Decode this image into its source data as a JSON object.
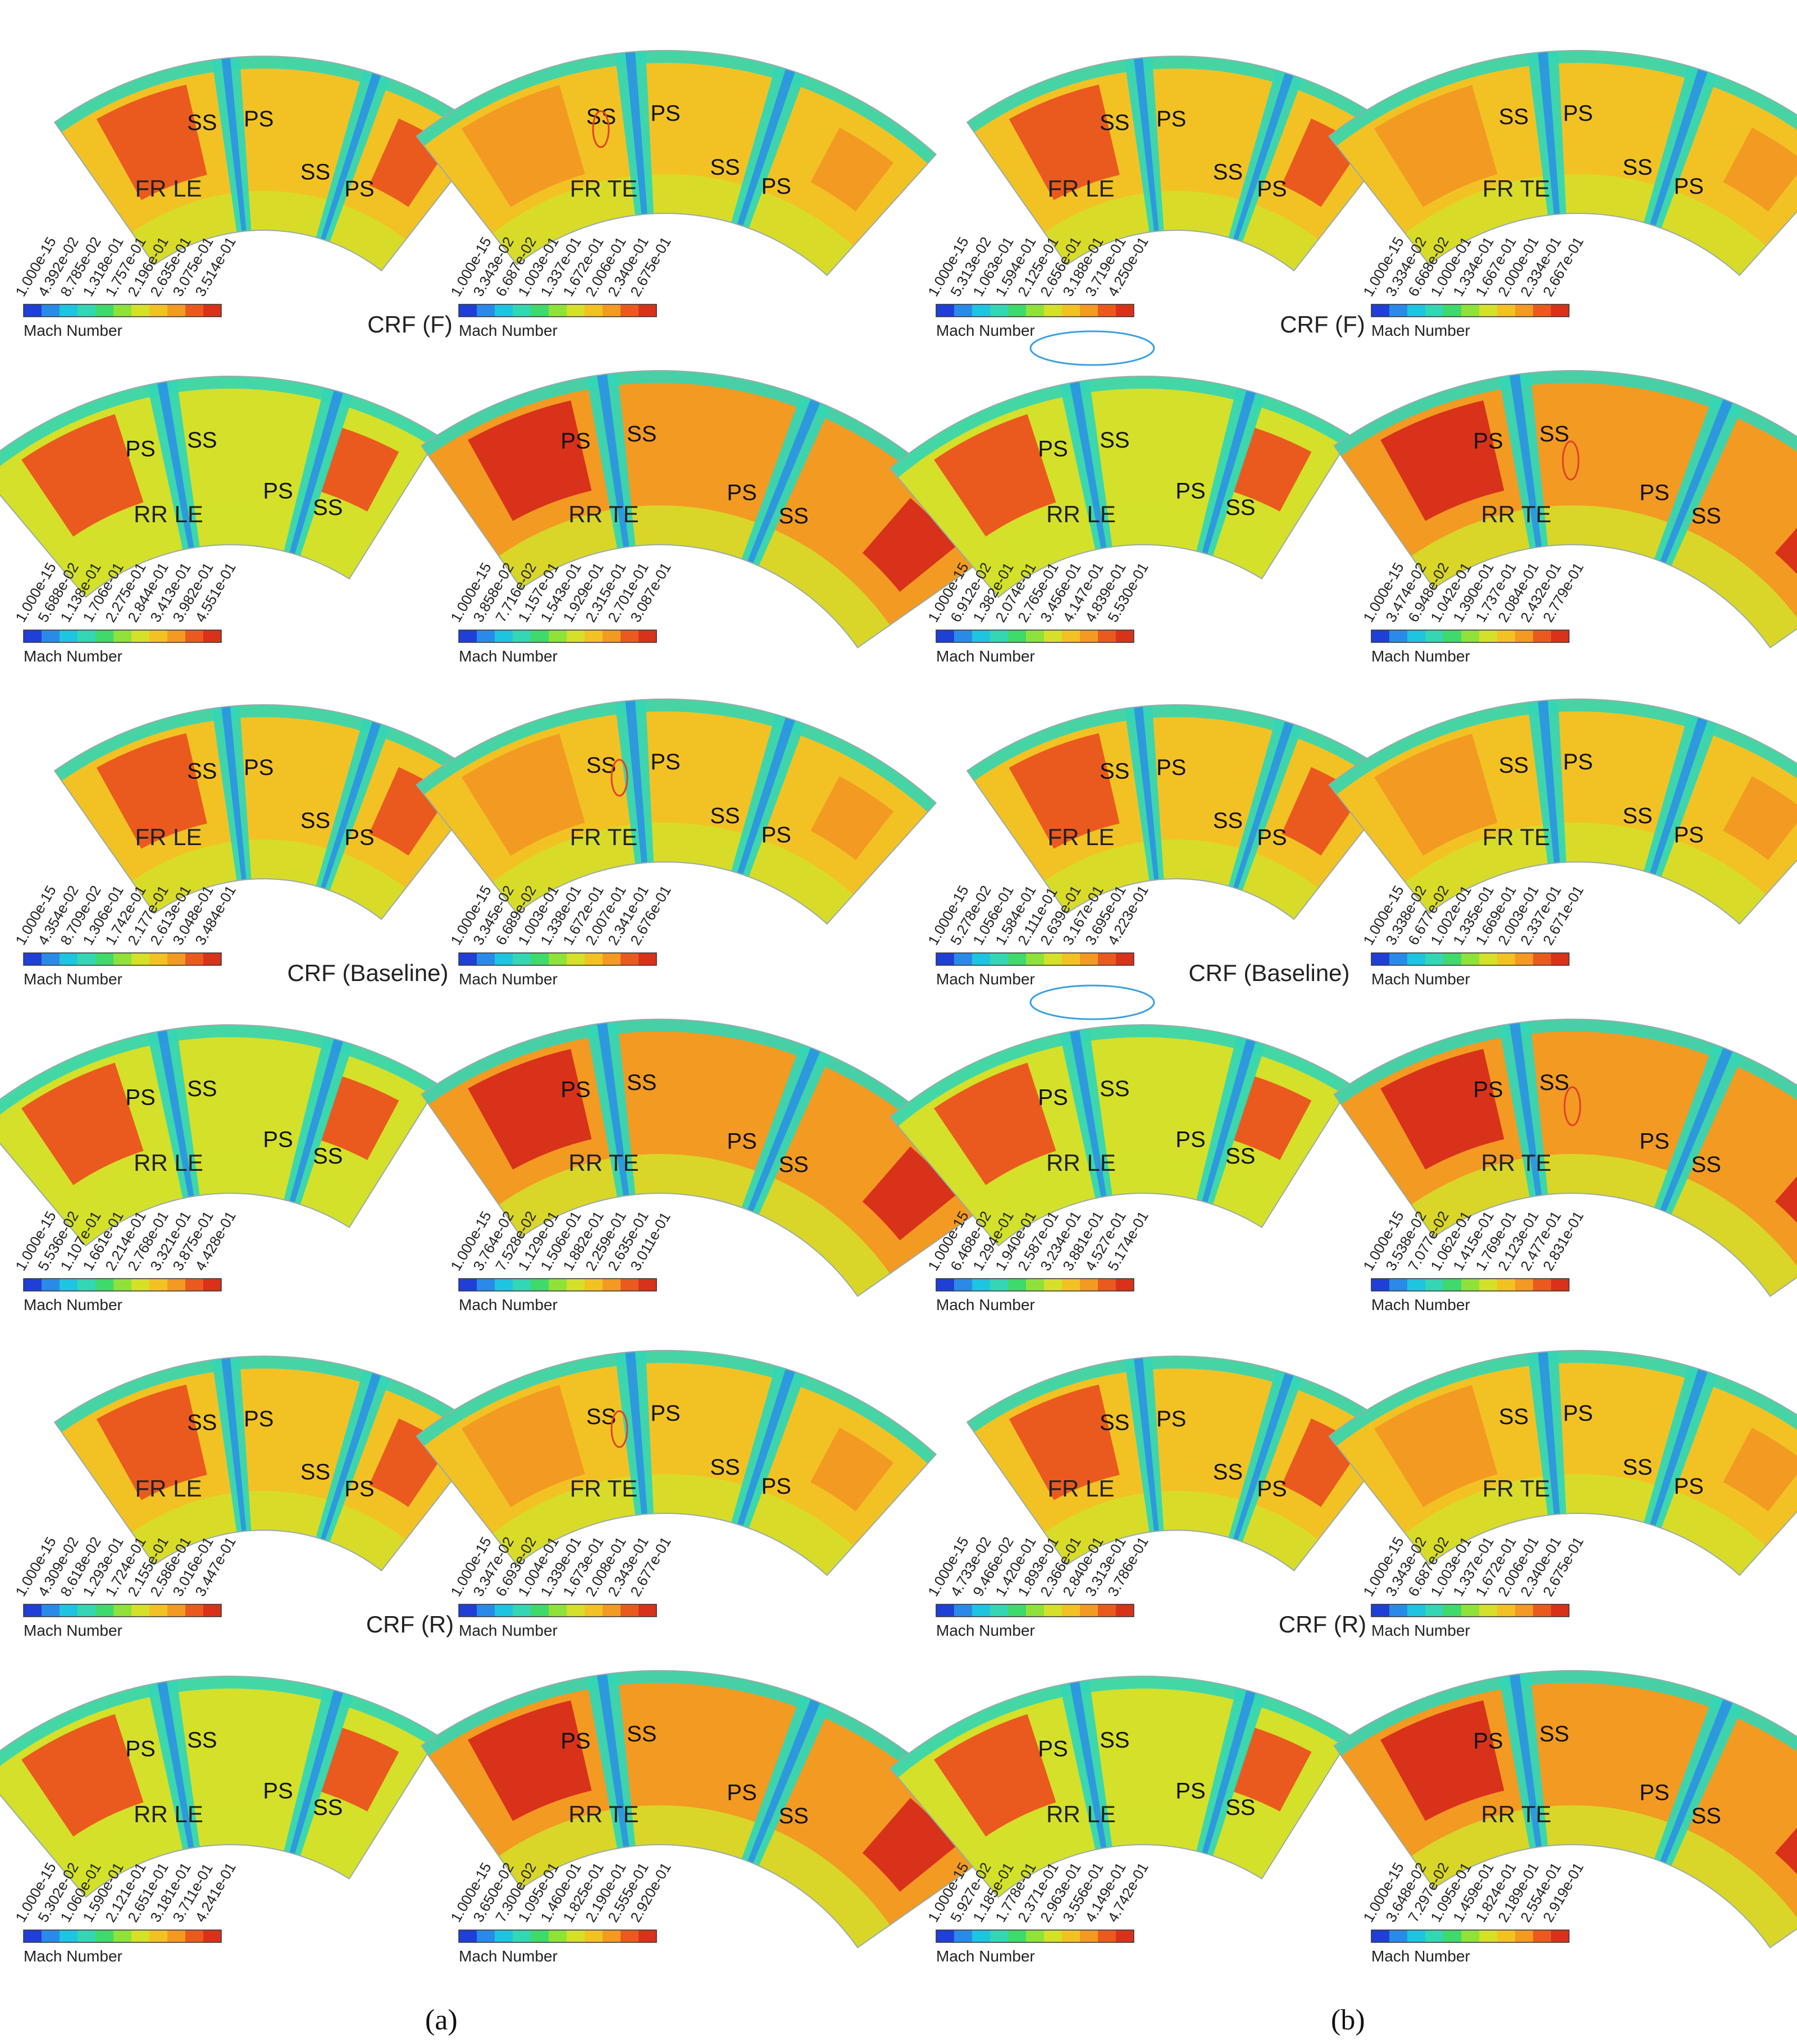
{
  "legend_title": "Mach Number",
  "colors": [
    "#1f3fd6",
    "#2a8ae8",
    "#1ec4e0",
    "#34d6b4",
    "#3fd96c",
    "#8ee23a",
    "#d4e02a",
    "#f2c224",
    "#f39a22",
    "#ea5a1e",
    "#d8321a"
  ],
  "sub_captions": [
    "(a)",
    "(b)"
  ],
  "group_labels": [
    "CRF (F)",
    "CRF (Baseline)",
    "CRF (R)"
  ],
  "rows": [
    {
      "a": [
        {
          "label": "FR LE",
          "regions": [
            "SS",
            "PS",
            "SS",
            "PS"
          ],
          "ticks": [
            "1.000e-15",
            "4.392e-02",
            "8.785e-02",
            "1.318e-01",
            "1.757e-01",
            "2.196e-01",
            "2.635e-01",
            "3.075e-01",
            "3.514e-01"
          ]
        },
        {
          "label": "FR TE",
          "regions": [
            "SS",
            "PS",
            "SS",
            "PS"
          ],
          "ticks": [
            "1.000e-15",
            "3.343e-02",
            "6.687e-02",
            "1.003e-01",
            "1.337e-01",
            "1.672e-01",
            "2.006e-01",
            "2.340e-01",
            "2.675e-01"
          ]
        }
      ],
      "b": [
        {
          "label": "FR LE",
          "regions": [
            "SS",
            "PS",
            "SS",
            "PS"
          ],
          "ticks": [
            "1.000e-15",
            "5.313e-02",
            "1.063e-01",
            "1.594e-01",
            "2.125e-01",
            "2.656e-01",
            "3.188e-01",
            "3.719e-01",
            "4.250e-01"
          ]
        },
        {
          "label": "FR TE",
          "regions": [
            "SS",
            "PS",
            "SS",
            "PS"
          ],
          "ticks": [
            "1.000e-15",
            "3.334e-02",
            "6.668e-02",
            "1.000e-01",
            "1.334e-01",
            "1.667e-01",
            "2.000e-01",
            "2.334e-01",
            "2.667e-01"
          ]
        }
      ]
    },
    {
      "a": [
        {
          "label": "RR LE",
          "regions": [
            "PS",
            "SS",
            "PS",
            "SS"
          ],
          "ticks": [
            "1.000e-15",
            "5.688e-02",
            "1.138e-01",
            "1.706e-01",
            "2.275e-01",
            "2.844e-01",
            "3.413e-01",
            "3.982e-01",
            "4.551e-01"
          ]
        },
        {
          "label": "RR TE",
          "regions": [
            "PS",
            "SS",
            "PS",
            "SS"
          ],
          "ticks": [
            "1.000e-15",
            "3.858e-02",
            "7.716e-02",
            "1.157e-01",
            "1.543e-01",
            "1.929e-01",
            "2.315e-01",
            "2.701e-01",
            "3.087e-01"
          ]
        }
      ],
      "b": [
        {
          "label": "RR LE",
          "regions": [
            "PS",
            "SS",
            "PS",
            "SS"
          ],
          "ticks": [
            "1.000e-15",
            "6.912e-02",
            "1.382e-01",
            "2.074e-01",
            "2.765e-01",
            "3.456e-01",
            "4.147e-01",
            "4.839e-01",
            "5.530e-01"
          ]
        },
        {
          "label": "RR TE",
          "regions": [
            "PS",
            "SS",
            "PS",
            "SS"
          ],
          "ticks": [
            "1.000e-15",
            "3.474e-02",
            "6.948e-02",
            "1.042e-01",
            "1.390e-01",
            "1.737e-01",
            "2.084e-01",
            "2.432e-01",
            "2.779e-01"
          ]
        }
      ]
    },
    {
      "a": [
        {
          "label": "FR LE",
          "regions": [
            "SS",
            "PS",
            "SS",
            "PS"
          ],
          "ticks": [
            "1.000e-15",
            "4.354e-02",
            "8.709e-02",
            "1.306e-01",
            "1.742e-01",
            "2.177e-01",
            "2.613e-01",
            "3.048e-01",
            "3.484e-01"
          ]
        },
        {
          "label": "FR TE",
          "regions": [
            "SS",
            "PS",
            "SS",
            "PS"
          ],
          "ticks": [
            "1.000e-15",
            "3.345e-02",
            "6.689e-02",
            "1.003e-01",
            "1.338e-01",
            "1.672e-01",
            "2.007e-01",
            "2.341e-01",
            "2.676e-01"
          ]
        }
      ],
      "b": [
        {
          "label": "FR LE",
          "regions": [
            "SS",
            "PS",
            "SS",
            "PS"
          ],
          "ticks": [
            "1.000e-15",
            "5.278e-02",
            "1.056e-01",
            "1.584e-01",
            "2.111e-01",
            "2.639e-01",
            "3.167e-01",
            "3.695e-01",
            "4.223e-01"
          ]
        },
        {
          "label": "FR TE",
          "regions": [
            "SS",
            "PS",
            "SS",
            "PS"
          ],
          "ticks": [
            "1.000e-15",
            "3.338e-02",
            "6.677e-02",
            "1.002e-01",
            "1.335e-01",
            "1.669e-01",
            "2.003e-01",
            "2.337e-01",
            "2.671e-01"
          ]
        }
      ]
    },
    {
      "a": [
        {
          "label": "RR LE",
          "regions": [
            "PS",
            "SS",
            "PS",
            "SS"
          ],
          "ticks": [
            "1.000e-15",
            "5.536e-02",
            "1.107e-01",
            "1.661e-01",
            "2.214e-01",
            "2.768e-01",
            "3.321e-01",
            "3.875e-01",
            "4.428e-01"
          ]
        },
        {
          "label": "RR TE",
          "regions": [
            "PS",
            "SS",
            "PS",
            "SS"
          ],
          "ticks": [
            "1.000e-15",
            "3.764e-02",
            "7.528e-02",
            "1.129e-01",
            "1.506e-01",
            "1.882e-01",
            "2.259e-01",
            "2.635e-01",
            "3.011e-01"
          ]
        }
      ],
      "b": [
        {
          "label": "RR LE",
          "regions": [
            "PS",
            "SS",
            "PS",
            "SS"
          ],
          "ticks": [
            "1.000e-15",
            "6.468e-02",
            "1.294e-01",
            "1.940e-01",
            "2.587e-01",
            "3.234e-01",
            "3.881e-01",
            "4.527e-01",
            "5.174e-01"
          ]
        },
        {
          "label": "RR TE",
          "regions": [
            "PS",
            "SS",
            "PS",
            "SS"
          ],
          "ticks": [
            "1.000e-15",
            "3.538e-02",
            "7.077e-02",
            "1.062e-01",
            "1.415e-01",
            "1.769e-01",
            "2.123e-01",
            "2.477e-01",
            "2.831e-01"
          ]
        }
      ]
    },
    {
      "a": [
        {
          "label": "FR LE",
          "regions": [
            "SS",
            "PS",
            "SS",
            "PS"
          ],
          "ticks": [
            "1.000e-15",
            "4.309e-02",
            "8.618e-02",
            "1.293e-01",
            "1.724e-01",
            "2.155e-01",
            "2.586e-01",
            "3.016e-01",
            "3.447e-01"
          ]
        },
        {
          "label": "FR TE",
          "regions": [
            "SS",
            "PS",
            "SS",
            "PS"
          ],
          "ticks": [
            "1.000e-15",
            "3.347e-02",
            "6.693e-02",
            "1.004e-01",
            "1.339e-01",
            "1.673e-01",
            "2.008e-01",
            "2.343e-01",
            "2.677e-01"
          ]
        }
      ],
      "b": [
        {
          "label": "FR LE",
          "regions": [
            "SS",
            "PS",
            "SS",
            "PS"
          ],
          "ticks": [
            "1.000e-15",
            "4.733e-02",
            "9.466e-02",
            "1.420e-01",
            "1.893e-01",
            "2.366e-01",
            "2.840e-01",
            "3.313e-01",
            "3.786e-01"
          ]
        },
        {
          "label": "FR TE",
          "regions": [
            "SS",
            "PS",
            "SS",
            "PS"
          ],
          "ticks": [
            "1.000e-15",
            "3.343e-02",
            "6.687e-02",
            "1.003e-01",
            "1.337e-01",
            "1.672e-01",
            "2.006e-01",
            "2.340e-01",
            "2.675e-01"
          ]
        }
      ]
    },
    {
      "a": [
        {
          "label": "RR LE",
          "regions": [
            "PS",
            "SS",
            "PS",
            "SS"
          ],
          "ticks": [
            "1.000e-15",
            "5.302e-02",
            "1.060e-01",
            "1.590e-01",
            "2.121e-01",
            "2.651e-01",
            "3.181e-01",
            "3.711e-01",
            "4.241e-01"
          ]
        },
        {
          "label": "RR TE",
          "regions": [
            "PS",
            "SS",
            "PS",
            "SS"
          ],
          "ticks": [
            "1.000e-15",
            "3.650e-02",
            "7.300e-02",
            "1.095e-01",
            "1.460e-01",
            "1.825e-01",
            "2.190e-01",
            "2.555e-01",
            "2.920e-01"
          ]
        }
      ],
      "b": [
        {
          "label": "RR LE",
          "regions": [
            "PS",
            "SS",
            "PS",
            "SS"
          ],
          "ticks": [
            "1.000e-15",
            "5.927e-02",
            "1.185e-01",
            "1.778e-01",
            "2.371e-01",
            "2.963e-01",
            "3.556e-01",
            "4.149e-01",
            "4.742e-01"
          ]
        },
        {
          "label": "RR TE",
          "regions": [
            "PS",
            "SS",
            "PS",
            "SS"
          ],
          "ticks": [
            "1.000e-15",
            "3.648e-02",
            "7.297e-02",
            "1.095e-01",
            "1.459e-01",
            "1.824e-01",
            "2.189e-01",
            "2.554e-01",
            "2.919e-01"
          ]
        }
      ]
    }
  ]
}
